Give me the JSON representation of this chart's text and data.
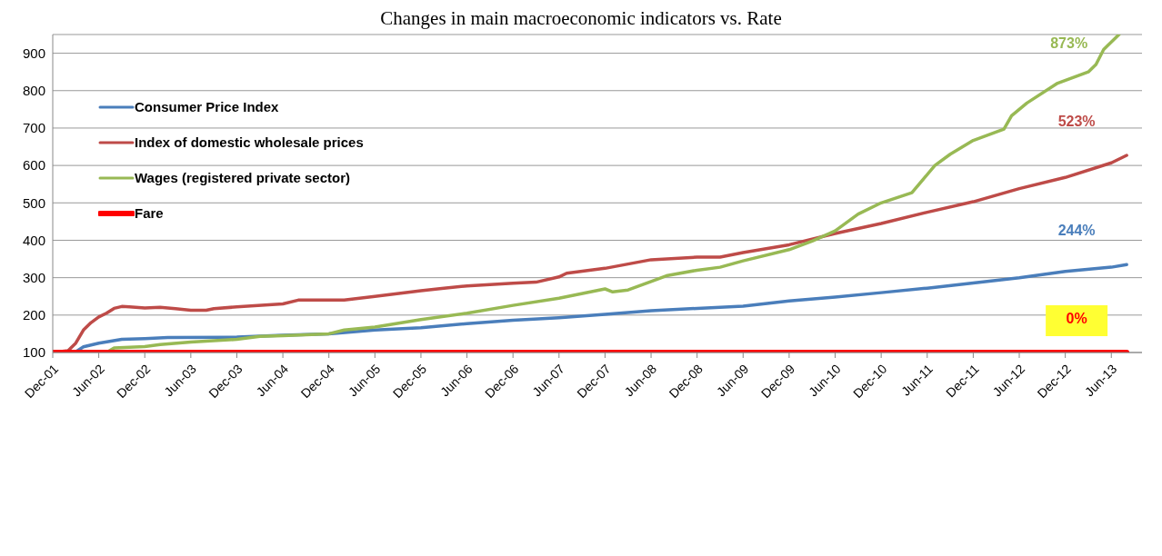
{
  "chart_data": {
    "type": "line",
    "title": "Changes in main macroeconomic indicators vs. Rate",
    "series": [
      {
        "name": "Consumer Price Index",
        "color": "#4a7ebb",
        "x": [
          "2001-12",
          "2002-03",
          "2002-04",
          "2002-06",
          "2002-09",
          "2002-12",
          "2003-03",
          "2003-12",
          "2004-06",
          "2004-12",
          "2005-06",
          "2005-12",
          "2006-06",
          "2006-12",
          "2007-06",
          "2007-12",
          "2008-06",
          "2008-12",
          "2009-06",
          "2009-12",
          "2010-06",
          "2010-12",
          "2011-06",
          "2011-12",
          "2012-06",
          "2012-12",
          "2013-06",
          "2013-08"
        ],
        "values": [
          100,
          102,
          115,
          125,
          135,
          137,
          140,
          141,
          146,
          150,
          160,
          166,
          177,
          186,
          193,
          202,
          212,
          218,
          224,
          238,
          248,
          260,
          272,
          286,
          300,
          317,
          328,
          335
        ]
      },
      {
        "name": "Index of domestic wholesale prices",
        "color": "#be4b48",
        "x": [
          "2001-12",
          "2002-02",
          "2002-03",
          "2002-04",
          "2002-05",
          "2002-06",
          "2002-07",
          "2002-08",
          "2002-09",
          "2002-10",
          "2002-12",
          "2003-02",
          "2003-04",
          "2003-06",
          "2003-08",
          "2003-09",
          "2003-12",
          "2004-06",
          "2004-08",
          "2004-12",
          "2005-02",
          "2005-06",
          "2005-12",
          "2006-03",
          "2006-06",
          "2006-12",
          "2007-03",
          "2007-06",
          "2007-07",
          "2007-12",
          "2008-06",
          "2008-12",
          "2009-03",
          "2009-06",
          "2009-12",
          "2010-06",
          "2010-12",
          "2011-06",
          "2011-12",
          "2012-06",
          "2012-12",
          "2013-06",
          "2013-08"
        ],
        "values": [
          100,
          105,
          125,
          160,
          180,
          195,
          205,
          218,
          223,
          222,
          219,
          221,
          217,
          213,
          213,
          217,
          222,
          230,
          240,
          240,
          240,
          250,
          265,
          272,
          278,
          285,
          288,
          302,
          312,
          325,
          348,
          355,
          355,
          367,
          388,
          418,
          445,
          475,
          503,
          538,
          568,
          607,
          627
        ]
      },
      {
        "name": "Wages (registered private sector)",
        "color": "#98b954",
        "x": [
          "2002-07",
          "2002-08",
          "2002-12",
          "2003-02",
          "2003-06",
          "2003-12",
          "2004-03",
          "2004-06",
          "2004-12",
          "2005-02",
          "2005-06",
          "2005-12",
          "2006-06",
          "2006-12",
          "2007-06",
          "2007-12",
          "2008-01",
          "2008-03",
          "2008-06",
          "2008-08",
          "2008-12",
          "2009-03",
          "2009-06",
          "2009-12",
          "2010-03",
          "2010-06",
          "2010-09",
          "2010-12",
          "2011-04",
          "2011-07",
          "2011-09",
          "2011-12",
          "2012-04",
          "2012-05",
          "2012-07",
          "2012-11",
          "2013-03",
          "2013-04",
          "2013-05",
          "2013-07"
        ],
        "values": [
          100,
          112,
          116,
          121,
          128,
          135,
          143,
          145,
          150,
          160,
          168,
          188,
          205,
          226,
          245,
          270,
          262,
          267,
          290,
          305,
          320,
          328,
          345,
          375,
          398,
          425,
          470,
          500,
          527,
          600,
          630,
          667,
          697,
          733,
          767,
          820,
          850,
          870,
          910,
          950
        ]
      },
      {
        "name": "Fare",
        "color": "#ff0000",
        "x": [
          "2001-12",
          "2013-08"
        ],
        "values": [
          100,
          100
        ]
      }
    ],
    "annotations": [
      "244%",
      "523%",
      "873%",
      "0%"
    ],
    "xlim": [
      "2001-12",
      "2013-10"
    ],
    "xticks": [
      {
        "value": "2001-12",
        "label": "Dec-01"
      },
      {
        "value": "2002-06",
        "label": "Jun-02"
      },
      {
        "value": "2002-12",
        "label": "Dec-02"
      },
      {
        "value": "2003-06",
        "label": "Jun-03"
      },
      {
        "value": "2003-12",
        "label": "Dec-03"
      },
      {
        "value": "2004-06",
        "label": "Jun-04"
      },
      {
        "value": "2004-12",
        "label": "Dec-04"
      },
      {
        "value": "2005-06",
        "label": "Jun-05"
      },
      {
        "value": "2005-12",
        "label": "Dec-05"
      },
      {
        "value": "2006-06",
        "label": "Jun-06"
      },
      {
        "value": "2006-12",
        "label": "Dec-06"
      },
      {
        "value": "2007-06",
        "label": "Jun-07"
      },
      {
        "value": "2007-12",
        "label": "Dec-07"
      },
      {
        "value": "2008-06",
        "label": "Jun-08"
      },
      {
        "value": "2008-12",
        "label": "Dec-08"
      },
      {
        "value": "2009-06",
        "label": "Jun-09"
      },
      {
        "value": "2009-12",
        "label": "Dec-09"
      },
      {
        "value": "2010-06",
        "label": "Jun-10"
      },
      {
        "value": "2010-12",
        "label": "Dec-10"
      },
      {
        "value": "2011-06",
        "label": "Jun-11"
      },
      {
        "value": "2011-12",
        "label": "Dec-11"
      },
      {
        "value": "2012-06",
        "label": "Jun-12"
      },
      {
        "value": "2012-12",
        "label": "Dec-12"
      },
      {
        "value": "2013-06",
        "label": "Jun-13"
      }
    ],
    "ylim": [
      100,
      950
    ],
    "yticks": [
      100,
      200,
      300,
      400,
      500,
      600,
      700,
      800,
      900
    ],
    "grid": "y",
    "legend": "top left",
    "marker": "none",
    "line_style": "solid"
  }
}
